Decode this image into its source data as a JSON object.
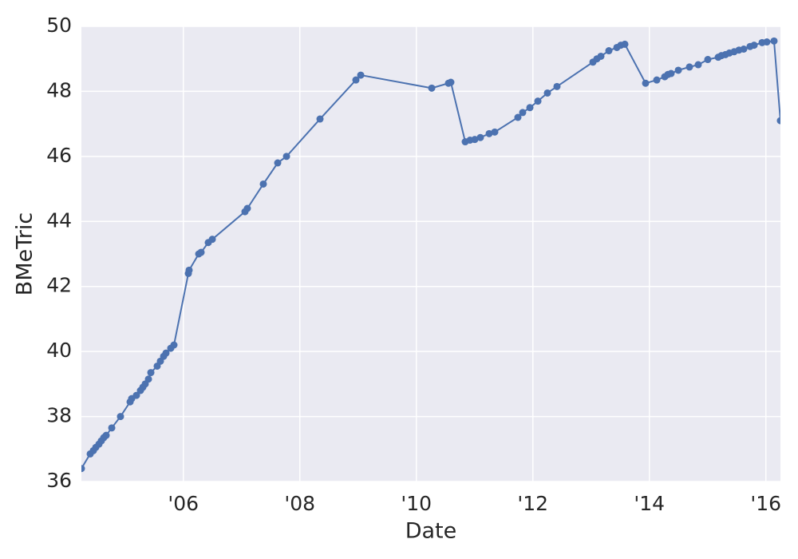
{
  "chart_data": {
    "type": "line",
    "x_label": "Date",
    "y_label": "BMeTric",
    "xlim": [
      2004.25,
      2016.25
    ],
    "xticks": [
      {
        "value": 2006,
        "label": "'06"
      },
      {
        "value": 2008,
        "label": "'08"
      },
      {
        "value": 2010,
        "label": "'10"
      },
      {
        "value": 2012,
        "label": "'12"
      },
      {
        "value": 2014,
        "label": "'14"
      },
      {
        "value": 2016,
        "label": "'16"
      }
    ],
    "ylim": [
      36,
      50
    ],
    "yticks": [
      36,
      38,
      40,
      42,
      44,
      46,
      48,
      50
    ],
    "grid": true,
    "x": [
      2004.25,
      2004.401,
      2004.455,
      2004.497,
      2004.551,
      2004.592,
      2004.634,
      2004.675,
      2004.771,
      2004.921,
      2005.086,
      2005.113,
      2005.195,
      2005.264,
      2005.305,
      2005.346,
      2005.401,
      2005.442,
      2005.551,
      2005.606,
      2005.661,
      2005.702,
      2005.784,
      2005.839,
      2006.086,
      2006.099,
      2006.264,
      2006.305,
      2006.428,
      2006.497,
      2007.058,
      2007.099,
      2007.373,
      2007.62,
      2007.771,
      2008.346,
      2008.962,
      2009.045,
      2010.264,
      2010.551,
      2010.592,
      2010.839,
      2010.921,
      2011.003,
      2011.099,
      2011.25,
      2011.346,
      2011.743,
      2011.825,
      2011.949,
      2012.086,
      2012.25,
      2012.414,
      2013.031,
      2013.099,
      2013.168,
      2013.305,
      2013.442,
      2013.51,
      2013.579,
      2013.935,
      2014.127,
      2014.264,
      2014.318,
      2014.373,
      2014.497,
      2014.688,
      2014.839,
      2015.003,
      2015.182,
      2015.236,
      2015.305,
      2015.373,
      2015.455,
      2015.538,
      2015.62,
      2015.729,
      2015.798,
      2015.935,
      2016.017,
      2016.14,
      2016.25
    ],
    "series": [
      {
        "color": "#4c72b0",
        "values": [
          36.4,
          36.85,
          36.95,
          37.05,
          37.15,
          37.25,
          37.35,
          37.42,
          37.65,
          38.0,
          38.45,
          38.55,
          38.65,
          38.8,
          38.9,
          39.0,
          39.15,
          39.35,
          39.55,
          39.7,
          39.85,
          39.95,
          40.1,
          40.2,
          42.4,
          42.5,
          43.0,
          43.05,
          43.35,
          43.45,
          44.3,
          44.4,
          45.15,
          45.8,
          46.0,
          47.15,
          48.35,
          48.5,
          48.1,
          48.25,
          48.28,
          46.45,
          46.5,
          46.52,
          46.58,
          46.7,
          46.75,
          47.2,
          47.35,
          47.5,
          47.7,
          47.95,
          48.15,
          48.9,
          49.0,
          49.08,
          49.25,
          49.35,
          49.42,
          49.45,
          48.25,
          48.35,
          48.45,
          48.52,
          48.55,
          48.65,
          48.75,
          48.82,
          48.98,
          49.05,
          49.1,
          49.13,
          49.18,
          49.22,
          49.27,
          49.3,
          49.38,
          49.42,
          49.5,
          49.52,
          49.55,
          47.1
        ]
      }
    ]
  }
}
